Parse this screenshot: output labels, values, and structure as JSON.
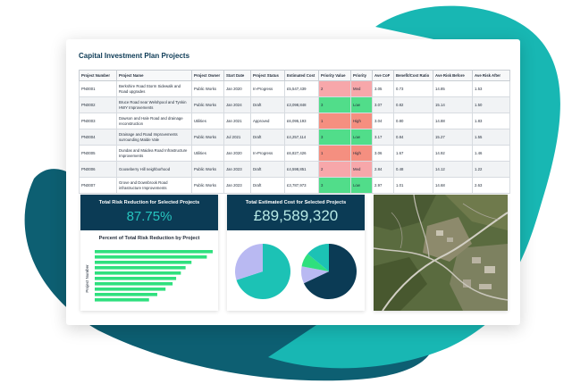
{
  "dashboard": {
    "title": "Capital Investment Plan Projects"
  },
  "table": {
    "columns": [
      "Project Number",
      "Project Name",
      "Project Owner",
      "Start Date",
      "Project Status",
      "Estimated Cost",
      "Priority Value",
      "Priority",
      "Ave CoF",
      "Benefit/Cost Ratio",
      "Ave Risk Before",
      "Ave Risk After"
    ],
    "rows": [
      {
        "number": "PN0001",
        "name": "Berkshire Road Storm Sidewalk and Road upgrades",
        "owner": "Public Works",
        "start": "Jan 2020",
        "status": "In-Progress",
        "cost": "£5,547,439",
        "pvalue": "2",
        "priority": "Med",
        "cof": "3.05",
        "bcr": "0.73",
        "before": "14.85",
        "after": "1.53"
      },
      {
        "number": "PN0002",
        "name": "Bruce Road near Welshpool and Tynkin HWY Improvements",
        "owner": "Public Works",
        "start": "Jan 2024",
        "status": "Draft",
        "cost": "£3,098,848",
        "pvalue": "3",
        "priority": "Low",
        "cof": "3.07",
        "bcr": "0.82",
        "before": "15.14",
        "after": "1.50"
      },
      {
        "number": "PN0003",
        "name": "Dawson and Hale Road and drainage reconstruction",
        "owner": "Utilities",
        "start": "Jan 2021",
        "status": "Approved",
        "cost": "£6,095,193",
        "pvalue": "1",
        "priority": "High",
        "cof": "3.04",
        "bcr": "0.80",
        "before": "14.88",
        "after": "1.83"
      },
      {
        "number": "PN0004",
        "name": "Drainage and Road Improvements surrounding Malde Vale",
        "owner": "Public Works",
        "start": "Jul 2021",
        "status": "Draft",
        "cost": "£4,257,114",
        "pvalue": "3",
        "priority": "Low",
        "cof": "3.17",
        "bcr": "0.84",
        "before": "15.27",
        "after": "1.55"
      },
      {
        "number": "PN0005",
        "name": "Dundas and Maidea Road Infrastructure Improvements",
        "owner": "Utilities",
        "start": "Jan 2020",
        "status": "In-Progress",
        "cost": "£6,827,426",
        "pvalue": "1",
        "priority": "High",
        "cof": "3.06",
        "bcr": "1.67",
        "before": "14.92",
        "after": "1.46"
      },
      {
        "number": "PN0006",
        "name": "Gooseberry Hill neighborhood",
        "owner": "Public Works",
        "start": "Jan 2023",
        "status": "Draft",
        "cost": "£4,598,851",
        "pvalue": "2",
        "priority": "Med",
        "cof": "2.84",
        "bcr": "0.48",
        "before": "14.12",
        "after": "1.22"
      },
      {
        "number": "PN0007",
        "name": "Grove and Downbrook Road infrastructure Improvements",
        "owner": "Public Works",
        "start": "Jan 2023",
        "status": "Draft",
        "cost": "£3,787,973",
        "pvalue": "3",
        "priority": "Low",
        "cof": "2.97",
        "bcr": "1.01",
        "before": "14.68",
        "after": "2.63"
      }
    ]
  },
  "priority_colors": {
    "1": "#f58f80",
    "2": "#f7a7aa",
    "3": "#51dd8a"
  },
  "panels": {
    "risk": {
      "title": "Total Risk Reduction for Selected Projects",
      "value": "87.75%"
    },
    "cost": {
      "title": "Total Estimated Cost for Selected Projects",
      "value": "£89,589,320"
    }
  },
  "chart_data": [
    {
      "type": "bar",
      "orientation": "horizontal",
      "title": "Percent of Total Risk Reduction by Project",
      "ylabel": "Project Number",
      "values": [
        100,
        95,
        82,
        77,
        73,
        69,
        66,
        60,
        53,
        46
      ],
      "color": "#2fe07e"
    },
    {
      "type": "pie",
      "slices": [
        {
          "value": 70,
          "color": "#1cc2b5"
        },
        {
          "value": 30,
          "color": "#b9b9f2"
        }
      ]
    },
    {
      "type": "pie",
      "slices": [
        {
          "value": 68,
          "color": "#0b3b55"
        },
        {
          "value": 10,
          "color": "#b9b9f2"
        },
        {
          "value": 8,
          "color": "#2fe07e"
        },
        {
          "value": 14,
          "color": "#1cc2b5"
        }
      ]
    }
  ]
}
